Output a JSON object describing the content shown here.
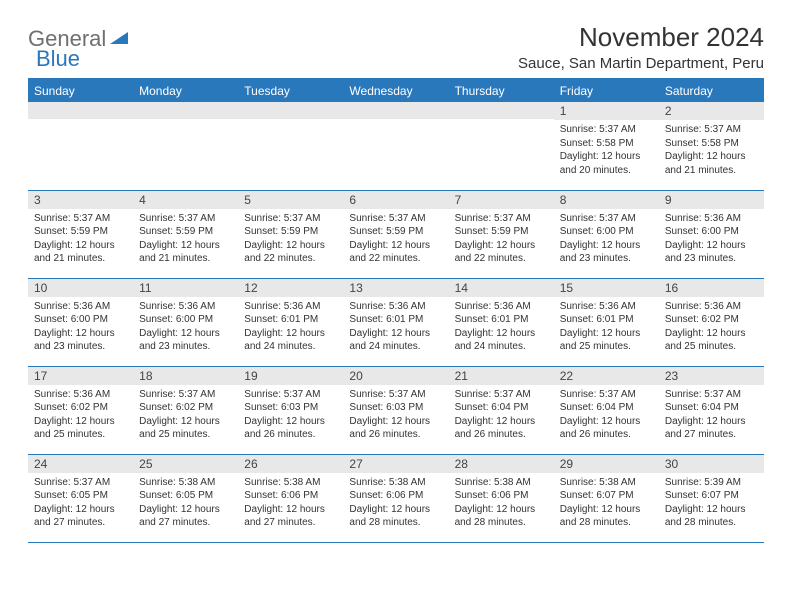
{
  "brand": {
    "part1": "General",
    "part2": "Blue"
  },
  "title": "November 2024",
  "location": "Sauce, San Martin Department, Peru",
  "colors": {
    "accent": "#2a78bc",
    "header_text": "#ffffff",
    "daynum_bg": "#e8e8e8",
    "text": "#333333",
    "logo_gray": "#6f6f6f"
  },
  "day_headers": [
    "Sunday",
    "Monday",
    "Tuesday",
    "Wednesday",
    "Thursday",
    "Friday",
    "Saturday"
  ],
  "weeks": [
    [
      {
        "n": "",
        "sr": "",
        "ss": "",
        "dl": ""
      },
      {
        "n": "",
        "sr": "",
        "ss": "",
        "dl": ""
      },
      {
        "n": "",
        "sr": "",
        "ss": "",
        "dl": ""
      },
      {
        "n": "",
        "sr": "",
        "ss": "",
        "dl": ""
      },
      {
        "n": "",
        "sr": "",
        "ss": "",
        "dl": ""
      },
      {
        "n": "1",
        "sr": "Sunrise: 5:37 AM",
        "ss": "Sunset: 5:58 PM",
        "dl": "Daylight: 12 hours and 20 minutes."
      },
      {
        "n": "2",
        "sr": "Sunrise: 5:37 AM",
        "ss": "Sunset: 5:58 PM",
        "dl": "Daylight: 12 hours and 21 minutes."
      }
    ],
    [
      {
        "n": "3",
        "sr": "Sunrise: 5:37 AM",
        "ss": "Sunset: 5:59 PM",
        "dl": "Daylight: 12 hours and 21 minutes."
      },
      {
        "n": "4",
        "sr": "Sunrise: 5:37 AM",
        "ss": "Sunset: 5:59 PM",
        "dl": "Daylight: 12 hours and 21 minutes."
      },
      {
        "n": "5",
        "sr": "Sunrise: 5:37 AM",
        "ss": "Sunset: 5:59 PM",
        "dl": "Daylight: 12 hours and 22 minutes."
      },
      {
        "n": "6",
        "sr": "Sunrise: 5:37 AM",
        "ss": "Sunset: 5:59 PM",
        "dl": "Daylight: 12 hours and 22 minutes."
      },
      {
        "n": "7",
        "sr": "Sunrise: 5:37 AM",
        "ss": "Sunset: 5:59 PM",
        "dl": "Daylight: 12 hours and 22 minutes."
      },
      {
        "n": "8",
        "sr": "Sunrise: 5:37 AM",
        "ss": "Sunset: 6:00 PM",
        "dl": "Daylight: 12 hours and 23 minutes."
      },
      {
        "n": "9",
        "sr": "Sunrise: 5:36 AM",
        "ss": "Sunset: 6:00 PM",
        "dl": "Daylight: 12 hours and 23 minutes."
      }
    ],
    [
      {
        "n": "10",
        "sr": "Sunrise: 5:36 AM",
        "ss": "Sunset: 6:00 PM",
        "dl": "Daylight: 12 hours and 23 minutes."
      },
      {
        "n": "11",
        "sr": "Sunrise: 5:36 AM",
        "ss": "Sunset: 6:00 PM",
        "dl": "Daylight: 12 hours and 23 minutes."
      },
      {
        "n": "12",
        "sr": "Sunrise: 5:36 AM",
        "ss": "Sunset: 6:01 PM",
        "dl": "Daylight: 12 hours and 24 minutes."
      },
      {
        "n": "13",
        "sr": "Sunrise: 5:36 AM",
        "ss": "Sunset: 6:01 PM",
        "dl": "Daylight: 12 hours and 24 minutes."
      },
      {
        "n": "14",
        "sr": "Sunrise: 5:36 AM",
        "ss": "Sunset: 6:01 PM",
        "dl": "Daylight: 12 hours and 24 minutes."
      },
      {
        "n": "15",
        "sr": "Sunrise: 5:36 AM",
        "ss": "Sunset: 6:01 PM",
        "dl": "Daylight: 12 hours and 25 minutes."
      },
      {
        "n": "16",
        "sr": "Sunrise: 5:36 AM",
        "ss": "Sunset: 6:02 PM",
        "dl": "Daylight: 12 hours and 25 minutes."
      }
    ],
    [
      {
        "n": "17",
        "sr": "Sunrise: 5:36 AM",
        "ss": "Sunset: 6:02 PM",
        "dl": "Daylight: 12 hours and 25 minutes."
      },
      {
        "n": "18",
        "sr": "Sunrise: 5:37 AM",
        "ss": "Sunset: 6:02 PM",
        "dl": "Daylight: 12 hours and 25 minutes."
      },
      {
        "n": "19",
        "sr": "Sunrise: 5:37 AM",
        "ss": "Sunset: 6:03 PM",
        "dl": "Daylight: 12 hours and 26 minutes."
      },
      {
        "n": "20",
        "sr": "Sunrise: 5:37 AM",
        "ss": "Sunset: 6:03 PM",
        "dl": "Daylight: 12 hours and 26 minutes."
      },
      {
        "n": "21",
        "sr": "Sunrise: 5:37 AM",
        "ss": "Sunset: 6:04 PM",
        "dl": "Daylight: 12 hours and 26 minutes."
      },
      {
        "n": "22",
        "sr": "Sunrise: 5:37 AM",
        "ss": "Sunset: 6:04 PM",
        "dl": "Daylight: 12 hours and 26 minutes."
      },
      {
        "n": "23",
        "sr": "Sunrise: 5:37 AM",
        "ss": "Sunset: 6:04 PM",
        "dl": "Daylight: 12 hours and 27 minutes."
      }
    ],
    [
      {
        "n": "24",
        "sr": "Sunrise: 5:37 AM",
        "ss": "Sunset: 6:05 PM",
        "dl": "Daylight: 12 hours and 27 minutes."
      },
      {
        "n": "25",
        "sr": "Sunrise: 5:38 AM",
        "ss": "Sunset: 6:05 PM",
        "dl": "Daylight: 12 hours and 27 minutes."
      },
      {
        "n": "26",
        "sr": "Sunrise: 5:38 AM",
        "ss": "Sunset: 6:06 PM",
        "dl": "Daylight: 12 hours and 27 minutes."
      },
      {
        "n": "27",
        "sr": "Sunrise: 5:38 AM",
        "ss": "Sunset: 6:06 PM",
        "dl": "Daylight: 12 hours and 28 minutes."
      },
      {
        "n": "28",
        "sr": "Sunrise: 5:38 AM",
        "ss": "Sunset: 6:06 PM",
        "dl": "Daylight: 12 hours and 28 minutes."
      },
      {
        "n": "29",
        "sr": "Sunrise: 5:38 AM",
        "ss": "Sunset: 6:07 PM",
        "dl": "Daylight: 12 hours and 28 minutes."
      },
      {
        "n": "30",
        "sr": "Sunrise: 5:39 AM",
        "ss": "Sunset: 6:07 PM",
        "dl": "Daylight: 12 hours and 28 minutes."
      }
    ]
  ]
}
